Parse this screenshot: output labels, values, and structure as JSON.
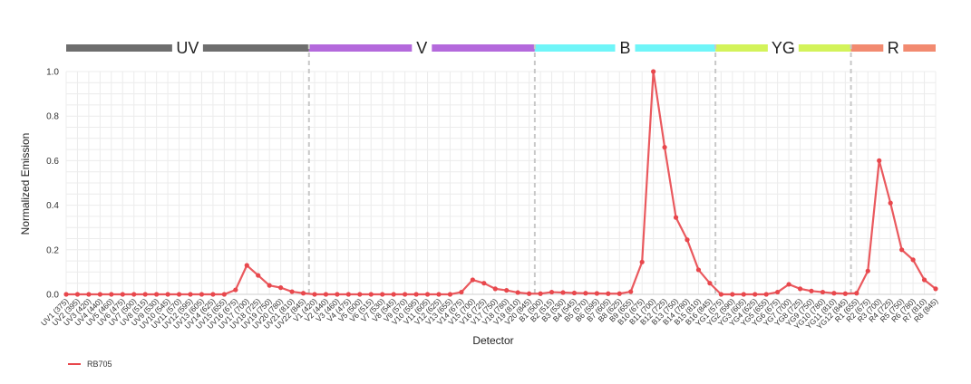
{
  "chart_data": {
    "type": "line",
    "xlabel": "Detector",
    "ylabel": "Normalized Emission",
    "ylim": [
      0,
      1.0
    ],
    "yticks": [
      "0.0",
      "0.2",
      "0.4",
      "0.6",
      "0.8",
      "1.0"
    ],
    "grid": true,
    "legend_position": "bottom-left",
    "categories": [
      "UV1 (375)",
      "UV2 (395)",
      "UV3 (420)",
      "UV4 (440)",
      "UV5 (460)",
      "UV6 (475)",
      "UV7 (500)",
      "UV8 (515)",
      "UV9 (530)",
      "UV10 (545)",
      "UV11 (570)",
      "UV12 (595)",
      "UV13 (605)",
      "UV14 (625)",
      "UV15 (655)",
      "UV16 (675)",
      "UV17 (700)",
      "UV18 (725)",
      "UV19 (750)",
      "UV20 (780)",
      "UV21 (810)",
      "UV22 (845)",
      "V1 (420)",
      "V2 (440)",
      "V3 (460)",
      "V4 (475)",
      "V5 (500)",
      "V6 (515)",
      "V7 (530)",
      "V8 (545)",
      "V9 (570)",
      "V10 (595)",
      "V11 (605)",
      "V12 (625)",
      "V13 (655)",
      "V14 (675)",
      "V15 (700)",
      "V16 (725)",
      "V17 (750)",
      "V18 (780)",
      "V19 (810)",
      "V20 (845)",
      "B1 (500)",
      "B2 (515)",
      "B3 (530)",
      "B4 (545)",
      "B5 (570)",
      "B6 (595)",
      "B7 (605)",
      "B8 (625)",
      "B9 (655)",
      "B10 (675)",
      "B11 (700)",
      "B12 (725)",
      "B13 (750)",
      "B14 (780)",
      "B15 (810)",
      "B16 (845)",
      "YG1 (575)",
      "YG2 (590)",
      "YG3 (605)",
      "YG4 (625)",
      "YG5 (655)",
      "YG6 (675)",
      "YG7 (700)",
      "YG8 (725)",
      "YG9 (750)",
      "YG10 (780)",
      "YG11 (810)",
      "YG12 (845)",
      "R1 (655)",
      "R2 (675)",
      "R3 (700)",
      "R4 (725)",
      "R5 (750)",
      "R6 (780)",
      "R7 (810)",
      "R8 (845)"
    ],
    "series": [
      {
        "name": "RB705",
        "color": "#e8474c",
        "values": [
          0.0,
          0.0,
          0.0,
          0.0,
          0.0,
          0.0,
          0.0,
          0.0,
          0.0,
          0.0,
          0.0,
          0.0,
          0.0,
          0.0,
          0.0,
          0.02,
          0.13,
          0.085,
          0.04,
          0.03,
          0.012,
          0.005,
          0.0,
          0.0,
          0.0,
          0.0,
          0.0,
          0.0,
          0.0,
          0.0,
          0.0,
          0.0,
          0.0,
          0.0,
          0.0,
          0.01,
          0.065,
          0.05,
          0.025,
          0.018,
          0.008,
          0.003,
          0.003,
          0.01,
          0.008,
          0.006,
          0.005,
          0.004,
          0.003,
          0.003,
          0.012,
          0.145,
          1.0,
          0.66,
          0.345,
          0.245,
          0.11,
          0.05,
          0.0,
          0.0,
          0.0,
          0.0,
          0.0,
          0.01,
          0.045,
          0.025,
          0.015,
          0.01,
          0.005,
          0.003,
          0.005,
          0.105,
          0.6,
          0.41,
          0.2,
          0.155,
          0.065,
          0.025
        ]
      }
    ],
    "lasers": [
      {
        "name": "UV",
        "start": 0,
        "end": 21,
        "color": "#6e6e6e"
      },
      {
        "name": "V",
        "start": 22,
        "end": 41,
        "color": "#b469dc"
      },
      {
        "name": "B",
        "start": 42,
        "end": 57,
        "color": "#6ff5f8"
      },
      {
        "name": "YG",
        "start": 58,
        "end": 69,
        "color": "#d3f35a"
      },
      {
        "name": "R",
        "start": 70,
        "end": 77,
        "color": "#f28a70"
      }
    ],
    "separators": [
      21.5,
      41.5,
      57.5,
      69.5
    ]
  }
}
